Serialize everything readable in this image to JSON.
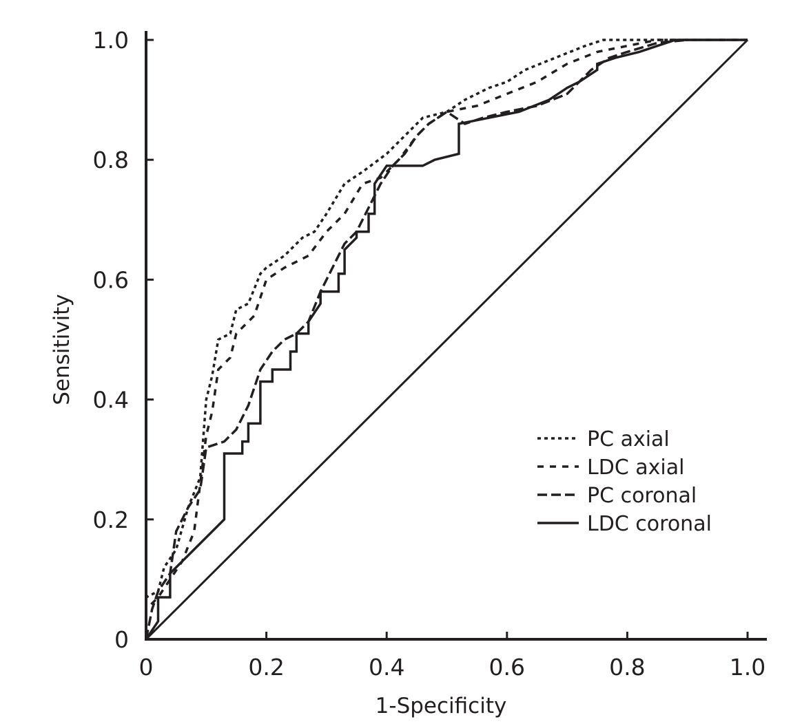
{
  "chart_data": {
    "type": "line",
    "title": "",
    "xlabel": "1-Specificity",
    "ylabel": "Sensitivity",
    "xlim": [
      0,
      1
    ],
    "ylim": [
      0,
      1
    ],
    "x_ticks": [
      "0",
      "0.2",
      "0.4",
      "0.6",
      "0.8",
      "1.0"
    ],
    "y_ticks": [
      "0",
      "0.2",
      "0.4",
      "0.6",
      "0.8",
      "1.0"
    ],
    "grid": false,
    "legend_position": "bottom-right",
    "reference_line": {
      "x": [
        0,
        1
      ],
      "y": [
        0,
        1
      ]
    },
    "series": [
      {
        "name": "PC axial",
        "style": "dotted",
        "points": [
          [
            0,
            0
          ],
          [
            0,
            0.07
          ],
          [
            0.02,
            0.08
          ],
          [
            0.03,
            0.12
          ],
          [
            0.05,
            0.15
          ],
          [
            0.07,
            0.22
          ],
          [
            0.09,
            0.27
          ],
          [
            0.1,
            0.4
          ],
          [
            0.11,
            0.44
          ],
          [
            0.12,
            0.5
          ],
          [
            0.14,
            0.51
          ],
          [
            0.15,
            0.55
          ],
          [
            0.17,
            0.56
          ],
          [
            0.19,
            0.61
          ],
          [
            0.2,
            0.62
          ],
          [
            0.23,
            0.64
          ],
          [
            0.26,
            0.67
          ],
          [
            0.28,
            0.68
          ],
          [
            0.3,
            0.71
          ],
          [
            0.33,
            0.76
          ],
          [
            0.36,
            0.78
          ],
          [
            0.4,
            0.81
          ],
          [
            0.43,
            0.84
          ],
          [
            0.46,
            0.87
          ],
          [
            0.5,
            0.88
          ],
          [
            0.53,
            0.9
          ],
          [
            0.57,
            0.92
          ],
          [
            0.6,
            0.93
          ],
          [
            0.63,
            0.95
          ],
          [
            0.68,
            0.97
          ],
          [
            0.73,
            0.99
          ],
          [
            0.76,
            1.0
          ],
          [
            0.8,
            1.0
          ],
          [
            1.0,
            1.0
          ]
        ]
      },
      {
        "name": "LDC axial",
        "style": "dashed-dotted",
        "points": [
          [
            0,
            0
          ],
          [
            0,
            0.05
          ],
          [
            0.02,
            0.07
          ],
          [
            0.04,
            0.1
          ],
          [
            0.06,
            0.13
          ],
          [
            0.08,
            0.18
          ],
          [
            0.09,
            0.26
          ],
          [
            0.1,
            0.34
          ],
          [
            0.11,
            0.38
          ],
          [
            0.12,
            0.45
          ],
          [
            0.14,
            0.47
          ],
          [
            0.15,
            0.51
          ],
          [
            0.18,
            0.54
          ],
          [
            0.2,
            0.6
          ],
          [
            0.23,
            0.62
          ],
          [
            0.27,
            0.64
          ],
          [
            0.3,
            0.68
          ],
          [
            0.33,
            0.71
          ],
          [
            0.36,
            0.76
          ],
          [
            0.39,
            0.77
          ],
          [
            0.42,
            0.8
          ],
          [
            0.45,
            0.84
          ],
          [
            0.47,
            0.86
          ],
          [
            0.5,
            0.88
          ],
          [
            0.55,
            0.89
          ],
          [
            0.6,
            0.91
          ],
          [
            0.65,
            0.93
          ],
          [
            0.7,
            0.96
          ],
          [
            0.75,
            0.98
          ],
          [
            0.8,
            0.99
          ],
          [
            0.85,
            1.0
          ],
          [
            1.0,
            1.0
          ]
        ]
      },
      {
        "name": "PC coronal",
        "style": "dashed",
        "points": [
          [
            0,
            0
          ],
          [
            0.01,
            0.05
          ],
          [
            0.02,
            0.08
          ],
          [
            0.04,
            0.11
          ],
          [
            0.05,
            0.18
          ],
          [
            0.07,
            0.22
          ],
          [
            0.09,
            0.25
          ],
          [
            0.1,
            0.32
          ],
          [
            0.13,
            0.33
          ],
          [
            0.15,
            0.35
          ],
          [
            0.17,
            0.39
          ],
          [
            0.19,
            0.45
          ],
          [
            0.21,
            0.48
          ],
          [
            0.23,
            0.5
          ],
          [
            0.25,
            0.51
          ],
          [
            0.27,
            0.53
          ],
          [
            0.29,
            0.58
          ],
          [
            0.31,
            0.62
          ],
          [
            0.33,
            0.66
          ],
          [
            0.35,
            0.68
          ],
          [
            0.37,
            0.72
          ],
          [
            0.39,
            0.76
          ],
          [
            0.41,
            0.79
          ],
          [
            0.43,
            0.81
          ],
          [
            0.45,
            0.84
          ],
          [
            0.47,
            0.86
          ],
          [
            0.5,
            0.88
          ],
          [
            0.53,
            0.86
          ],
          [
            0.56,
            0.87
          ],
          [
            0.6,
            0.88
          ],
          [
            0.65,
            0.89
          ],
          [
            0.7,
            0.91
          ],
          [
            0.74,
            0.95
          ],
          [
            0.77,
            0.97
          ],
          [
            0.8,
            0.98
          ],
          [
            0.85,
            0.995
          ],
          [
            0.9,
            1.0
          ],
          [
            1.0,
            1.0
          ]
        ]
      },
      {
        "name": "LDC coronal",
        "style": "solid",
        "points": [
          [
            0,
            0
          ],
          [
            0.02,
            0.03
          ],
          [
            0.02,
            0.07
          ],
          [
            0.04,
            0.07
          ],
          [
            0.04,
            0.11
          ],
          [
            0.13,
            0.2
          ],
          [
            0.13,
            0.31
          ],
          [
            0.16,
            0.31
          ],
          [
            0.16,
            0.33
          ],
          [
            0.17,
            0.33
          ],
          [
            0.17,
            0.36
          ],
          [
            0.19,
            0.36
          ],
          [
            0.19,
            0.43
          ],
          [
            0.21,
            0.43
          ],
          [
            0.21,
            0.45
          ],
          [
            0.24,
            0.45
          ],
          [
            0.24,
            0.48
          ],
          [
            0.25,
            0.48
          ],
          [
            0.25,
            0.51
          ],
          [
            0.27,
            0.51
          ],
          [
            0.27,
            0.53
          ],
          [
            0.29,
            0.56
          ],
          [
            0.29,
            0.58
          ],
          [
            0.32,
            0.58
          ],
          [
            0.32,
            0.61
          ],
          [
            0.33,
            0.61
          ],
          [
            0.33,
            0.65
          ],
          [
            0.35,
            0.67
          ],
          [
            0.35,
            0.68
          ],
          [
            0.37,
            0.68
          ],
          [
            0.37,
            0.71
          ],
          [
            0.38,
            0.71
          ],
          [
            0.38,
            0.76
          ],
          [
            0.4,
            0.79
          ],
          [
            0.46,
            0.79
          ],
          [
            0.48,
            0.8
          ],
          [
            0.52,
            0.81
          ],
          [
            0.52,
            0.86
          ],
          [
            0.57,
            0.87
          ],
          [
            0.62,
            0.88
          ],
          [
            0.67,
            0.9
          ],
          [
            0.7,
            0.92
          ],
          [
            0.72,
            0.93
          ],
          [
            0.75,
            0.95
          ],
          [
            0.75,
            0.96
          ],
          [
            0.78,
            0.97
          ],
          [
            0.82,
            0.98
          ],
          [
            0.85,
            0.99
          ],
          [
            0.88,
            1.0
          ],
          [
            1.0,
            1.0
          ]
        ]
      }
    ]
  }
}
